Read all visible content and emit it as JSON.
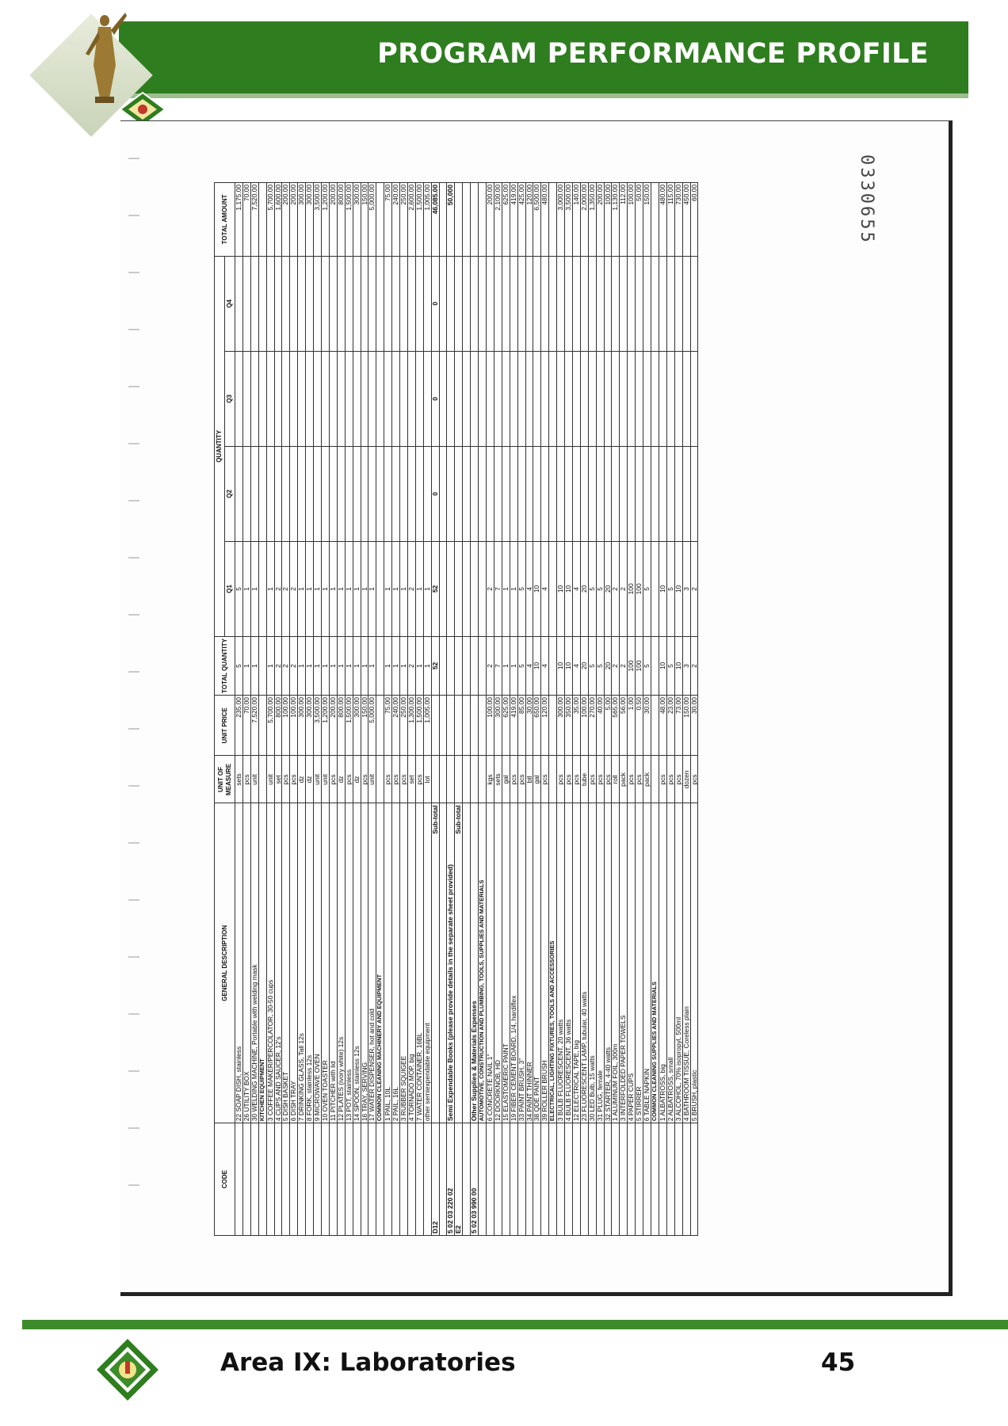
{
  "header": {
    "title": "PROGRAM PERFORMANCE PROFILE"
  },
  "footer": {
    "area": "Area IX: Laboratories",
    "page": "45"
  },
  "document": {
    "control_number": "0330655"
  },
  "table": {
    "headers": {
      "code": "CODE",
      "description": "GENERAL DESCRIPTION",
      "unit": "UNIT OF MEASURE",
      "unit_price": "UNIT PRICE",
      "total_qty": "TOTAL QUANTITY",
      "quantity": "QUANTITY",
      "q1": "Q1",
      "q2": "Q2",
      "q3": "Q3",
      "q4": "Q4",
      "total_amount": "TOTAL AMOUNT"
    },
    "rows": [
      {
        "code": "",
        "desc": "22 SOAP DISH, stainless",
        "unit": "sets",
        "price": "235.00",
        "tq": "5",
        "q1": "5",
        "q2": "",
        "q3": "",
        "q4": "",
        "amt": "1,175.00"
      },
      {
        "code": "",
        "desc": "26 UTILITY BOX",
        "unit": "pcs",
        "price": "70.00",
        "tq": "1",
        "q1": "1",
        "q2": "",
        "q3": "",
        "q4": "",
        "amt": "70.00"
      },
      {
        "code": "",
        "desc": "30 WELDING MACHINE, Portable with welding mask",
        "unit": "unit",
        "price": "7,520.00",
        "tq": "1",
        "q1": "1",
        "q2": "",
        "q3": "",
        "q4": "",
        "amt": "7,520.00"
      },
      {
        "type": "cat",
        "code": "",
        "desc": "KITCHEN EQUIPMENT",
        "unit": "",
        "price": "",
        "tq": "",
        "q1": "",
        "q2": "",
        "q3": "",
        "q4": "",
        "amt": ""
      },
      {
        "code": "",
        "desc": "3 COFFEE MAKER/PERCOLATOR, 30-50 cups",
        "unit": "unit",
        "price": "5,700.00",
        "tq": "1",
        "q1": "1",
        "q2": "",
        "q3": "",
        "q4": "",
        "amt": "5,700.00"
      },
      {
        "code": "",
        "desc": "4 CUPS AND SAUCER, 12's",
        "unit": "set",
        "price": "800.00",
        "tq": "2",
        "q1": "2",
        "q2": "",
        "q3": "",
        "q4": "",
        "amt": "1,600.00"
      },
      {
        "code": "",
        "desc": "5 DISH BASKET",
        "unit": "pcs",
        "price": "100.00",
        "tq": "2",
        "q1": "2",
        "q2": "",
        "q3": "",
        "q4": "",
        "amt": "200.00"
      },
      {
        "code": "",
        "desc": "6 DISH TRAY",
        "unit": "pcs",
        "price": "100.00",
        "tq": "2",
        "q1": "2",
        "q2": "",
        "q3": "",
        "q4": "",
        "amt": "200.00"
      },
      {
        "code": "",
        "desc": "7 DRINKING GLASS, Tall 12s",
        "unit": "dz",
        "price": "300.00",
        "tq": "1",
        "q1": "1",
        "q2": "",
        "q3": "",
        "q4": "",
        "amt": "300.00"
      },
      {
        "code": "",
        "desc": "8 FORK, stainless 12s",
        "unit": "dz",
        "price": "300.00",
        "tq": "1",
        "q1": "1",
        "q2": "",
        "q3": "",
        "q4": "",
        "amt": "300.00"
      },
      {
        "code": "",
        "desc": "9 MICROWAVE OVEN",
        "unit": "unit",
        "price": "3,500.00",
        "tq": "1",
        "q1": "1",
        "q2": "",
        "q3": "",
        "q4": "",
        "amt": "3,500.00"
      },
      {
        "code": "",
        "desc": "10 OVEN TOASTER",
        "unit": "unit",
        "price": "1,200.00",
        "tq": "1",
        "q1": "1",
        "q2": "",
        "q3": "",
        "q4": "",
        "amt": "1,200.00"
      },
      {
        "code": "",
        "desc": "11 PITCHER with lid",
        "unit": "pcs",
        "price": "200.00",
        "tq": "1",
        "q1": "1",
        "q2": "",
        "q3": "",
        "q4": "",
        "amt": "200.00"
      },
      {
        "code": "",
        "desc": "12 PLATES (ivory white) 12s",
        "unit": "dz",
        "price": "800.00",
        "tq": "1",
        "q1": "1",
        "q2": "",
        "q3": "",
        "q4": "",
        "amt": "800.00"
      },
      {
        "code": "",
        "desc": "13 POT, stainless",
        "unit": "pcs",
        "price": "1,500.00",
        "tq": "1",
        "q1": "1",
        "q2": "",
        "q3": "",
        "q4": "",
        "amt": "1,500.00"
      },
      {
        "code": "",
        "desc": "14 SPOON, stainless 12s",
        "unit": "dz",
        "price": "300.00",
        "tq": "1",
        "q1": "1",
        "q2": "",
        "q3": "",
        "q4": "",
        "amt": "300.00"
      },
      {
        "code": "",
        "desc": "16 TRAY, SERVING",
        "unit": "pcs",
        "price": "150.00",
        "tq": "1",
        "q1": "1",
        "q2": "",
        "q3": "",
        "q4": "",
        "amt": "150.00"
      },
      {
        "code": "",
        "desc": "17 WATER DISPENSER, hot and cold",
        "unit": "unit",
        "price": "5,000.00",
        "tq": "1",
        "q1": "1",
        "q2": "",
        "q3": "",
        "q4": "",
        "amt": "5,000.00"
      },
      {
        "type": "cat",
        "code": "",
        "desc": "COMMON CLEANING MACHINERY AND EQUIPMENT",
        "unit": "",
        "price": "",
        "tq": "",
        "q1": "",
        "q2": "",
        "q3": "",
        "q4": "",
        "amt": ""
      },
      {
        "code": "",
        "desc": "1 PAIL, 10L",
        "unit": "pcs",
        "price": "75.00",
        "tq": "1",
        "q1": "1",
        "q2": "",
        "q3": "",
        "q4": "",
        "amt": "75.00"
      },
      {
        "code": "",
        "desc": "2 PAIL, 16L",
        "unit": "pcs",
        "price": "240.00",
        "tq": "1",
        "q1": "1",
        "q2": "",
        "q3": "",
        "q4": "",
        "amt": "240.00"
      },
      {
        "code": "",
        "desc": "3 RUBBER SQUIGEE",
        "unit": "pcs",
        "price": "250.00",
        "tq": "1",
        "q1": "1",
        "q2": "",
        "q3": "",
        "q4": "",
        "amt": "250.00"
      },
      {
        "code": "",
        "desc": "4 TORNADO MOP, big",
        "unit": "set",
        "price": "1,300.00",
        "tq": "2",
        "q1": "2",
        "q2": "",
        "q3": "",
        "q4": "",
        "amt": "2,600.00"
      },
      {
        "code": "",
        "desc": "7 WATER CONTAINER, 16BL",
        "unit": "pcs",
        "price": "1,500.00",
        "tq": "1",
        "q1": "1",
        "q2": "",
        "q3": "",
        "q4": "",
        "amt": "1,500.00"
      },
      {
        "code": "",
        "desc": "other semiexpendable equipment",
        "unit": "lot",
        "price": "1,005.00",
        "tq": "1",
        "q1": "1",
        "q2": "",
        "q3": "",
        "q4": "",
        "amt": "1,005.00"
      },
      {
        "type": "sub",
        "code": "D12",
        "desc": "Sub-total",
        "unit": "",
        "price": "",
        "tq": "52",
        "q1": "52",
        "q2": "0",
        "q3": "0",
        "q4": "0",
        "amt": "46,085.00"
      },
      {
        "type": "blank",
        "code": "",
        "desc": "",
        "unit": "",
        "price": "",
        "tq": "",
        "q1": "",
        "q2": "",
        "q3": "",
        "q4": "",
        "amt": ""
      },
      {
        "type": "big",
        "code": "5  02 03 220  02",
        "desc": "Semi Expendable Books (please provide details in the separate sheet provided)",
        "unit": "",
        "price": "",
        "tq": "",
        "q1": "",
        "q2": "",
        "q3": "",
        "q4": "",
        "amt": "50,000"
      },
      {
        "type": "sub",
        "code": "E2",
        "desc": "Sub-total",
        "unit": "",
        "price": "",
        "tq": "",
        "q1": "",
        "q2": "",
        "q3": "",
        "q4": "",
        "amt": ""
      },
      {
        "type": "blank",
        "code": "",
        "desc": "",
        "unit": "",
        "price": "",
        "tq": "",
        "q1": "",
        "q2": "",
        "q3": "",
        "q4": "",
        "amt": ""
      },
      {
        "type": "big",
        "code": "5  02 03 990  00",
        "desc": "Other Supplies & Materials Expenses",
        "unit": "",
        "price": "",
        "tq": "",
        "q1": "",
        "q2": "",
        "q3": "",
        "q4": "",
        "amt": ""
      },
      {
        "type": "cat",
        "code": "",
        "desc": "AUTOMOTIVE, CONSTRUCTION AND PLUMBING, TOOLS, SUPPLIES AND MATERIALS",
        "unit": "",
        "price": "",
        "tq": "",
        "q1": "",
        "q2": "",
        "q3": "",
        "q4": "",
        "amt": ""
      },
      {
        "code": "",
        "desc": "6 CONCRETE NAIL 1\"",
        "unit": "kgs",
        "price": "100.00",
        "tq": "2",
        "q1": "2",
        "q2": "",
        "q3": "",
        "q4": "",
        "amt": "200.00"
      },
      {
        "code": "",
        "desc": "12 DOORKNOB, HD",
        "unit": "sets",
        "price": "300.00",
        "tq": "7",
        "q1": "7",
        "q2": "",
        "q3": "",
        "q4": "",
        "amt": "2,100.00"
      },
      {
        "code": "",
        "desc": "15 ELASTOMERIC PAINT",
        "unit": "gal",
        "price": "625.00",
        "tq": "1",
        "q1": "1",
        "q2": "",
        "q3": "",
        "q4": "",
        "amt": "625.00"
      },
      {
        "code": "",
        "desc": "19 FIBER CEMENT BOARD, 1/4, hardiflex",
        "unit": "pcs",
        "price": "419.00",
        "tq": "1",
        "q1": "1",
        "q2": "",
        "q3": "",
        "q4": "",
        "amt": "419.00"
      },
      {
        "code": "",
        "desc": "33 PAINT BRUSH, 3\"",
        "unit": "pcs",
        "price": "85.00",
        "tq": "5",
        "q1": "5",
        "q2": "",
        "q3": "",
        "q4": "",
        "amt": "425.00"
      },
      {
        "code": "",
        "desc": "34 PAINT THINNER",
        "unit": "btl",
        "price": "30.00",
        "tq": "4",
        "q1": "4",
        "q2": "",
        "q3": "",
        "q4": "",
        "amt": "120.00"
      },
      {
        "code": "",
        "desc": "38 QDE PAINT",
        "unit": "gal",
        "price": "650.00",
        "tq": "10",
        "q1": "10",
        "q2": "",
        "q3": "",
        "q4": "",
        "amt": "6,500.00"
      },
      {
        "code": "",
        "desc": "39 ROLLER BRUSH",
        "unit": "pcs",
        "price": "120.00",
        "tq": "4",
        "q1": "4",
        "q2": "",
        "q3": "",
        "q4": "",
        "amt": "480.00"
      },
      {
        "type": "cat",
        "code": "",
        "desc": "ELECTRICAL, LIGHTING FIXTURES, TOOLS AND ACCESSORIES",
        "unit": "",
        "price": "",
        "tq": "",
        "q1": "",
        "q2": "",
        "q3": "",
        "q4": "",
        "amt": ""
      },
      {
        "code": "",
        "desc": "3 BULB FLUORESCENT, 20 watts",
        "unit": "pcs",
        "price": "300.00",
        "tq": "10",
        "q1": "10",
        "q2": "",
        "q3": "",
        "q4": "",
        "amt": "3,000.00"
      },
      {
        "code": "",
        "desc": "4 BULB FLUORESCENT, 36 watts",
        "unit": "pcs",
        "price": "350.00",
        "tq": "10",
        "q1": "10",
        "q2": "",
        "q3": "",
        "q4": "",
        "amt": "3,500.00"
      },
      {
        "code": "",
        "desc": "12 ELECTRICAL TAPE, big",
        "unit": "pcs",
        "price": "35.00",
        "tq": "4",
        "q1": "4",
        "q2": "",
        "q3": "",
        "q4": "",
        "amt": "140.00"
      },
      {
        "code": "",
        "desc": "23 FLUORESCENT LAMP, tubular, 40 watts",
        "unit": "tube",
        "price": "100.00",
        "tq": "20",
        "q1": "20",
        "q2": "",
        "q3": "",
        "q4": "",
        "amt": "2,000.00"
      },
      {
        "code": "",
        "desc": "30 LED Bulb, 15 watts",
        "unit": "pcs",
        "price": "270.00",
        "tq": "5",
        "q1": "5",
        "q2": "",
        "q3": "",
        "q4": "",
        "amt": "1,350.00"
      },
      {
        "code": "",
        "desc": "31 PLUG, female",
        "unit": "pcs",
        "price": "40.00",
        "tq": "5",
        "q1": "5",
        "q2": "",
        "q3": "",
        "q4": "",
        "amt": "200.00"
      },
      {
        "code": "",
        "desc": "32 STARTER, 4-40 watts",
        "unit": "pcs",
        "price": "5.00",
        "tq": "20",
        "q1": "20",
        "q2": "",
        "q3": "",
        "q4": "",
        "amt": "100.00"
      },
      {
        "code": "",
        "desc": "1 ALUMINUM FOIL, 300m",
        "unit": "roll",
        "price": "565.00",
        "tq": "2",
        "q1": "2",
        "q2": "",
        "q3": "",
        "q4": "",
        "amt": "1,130.00"
      },
      {
        "code": "",
        "desc": "3 INTERFOLDED PAPER TOWELS",
        "unit": "pack",
        "price": "56.00",
        "tq": "2",
        "q1": "2",
        "q2": "",
        "q3": "",
        "q4": "",
        "amt": "112.00"
      },
      {
        "code": "",
        "desc": "4 PAPER CUPS",
        "unit": "pcs",
        "price": "1.00",
        "tq": "100",
        "q1": "100",
        "q2": "",
        "q3": "",
        "q4": "",
        "amt": "100.00"
      },
      {
        "code": "",
        "desc": "5 STIRRER",
        "unit": "pcs",
        "price": "0.50",
        "tq": "100",
        "q1": "100",
        "q2": "",
        "q3": "",
        "q4": "",
        "amt": "50.00"
      },
      {
        "code": "",
        "desc": "6 TABLE NAPKIN",
        "unit": "pack",
        "price": "30.00",
        "tq": "5",
        "q1": "5",
        "q2": "",
        "q3": "",
        "q4": "",
        "amt": "150.00"
      },
      {
        "type": "cat",
        "code": "",
        "desc": "COMMON CLEANING SUPPLIES AND MATERIALS",
        "unit": "",
        "price": "",
        "tq": "",
        "q1": "",
        "q2": "",
        "q3": "",
        "q4": "",
        "amt": ""
      },
      {
        "code": "",
        "desc": "1 ALBATROSS, big",
        "unit": "pcs",
        "price": "48.00",
        "tq": "10",
        "q1": "10",
        "q2": "",
        "q3": "",
        "q4": "",
        "amt": "480.00"
      },
      {
        "code": "",
        "desc": "2 ALBATROSS, small",
        "unit": "pcs",
        "price": "23.00",
        "tq": "5",
        "q1": "5",
        "q2": "",
        "q3": "",
        "q4": "",
        "amt": "115.00"
      },
      {
        "code": "",
        "desc": "3 ALCOHOL, 70% isopropyl, 500ml",
        "unit": "pcs",
        "price": "73.00",
        "tq": "10",
        "q1": "10",
        "q2": "",
        "q3": "",
        "q4": "",
        "amt": "730.00"
      },
      {
        "code": "",
        "desc": "4 BATHROOM TISSUE, Coreless plain",
        "unit": "dozen",
        "price": "150.00",
        "tq": "3",
        "q1": "3",
        "q2": "",
        "q3": "",
        "q4": "",
        "amt": "450.00"
      },
      {
        "code": "",
        "desc": "5 BRUSH, plastic",
        "unit": "pcs",
        "price": "30.00",
        "tq": "2",
        "q1": "2",
        "q2": "",
        "q3": "",
        "q4": "",
        "amt": "60.00"
      }
    ]
  }
}
